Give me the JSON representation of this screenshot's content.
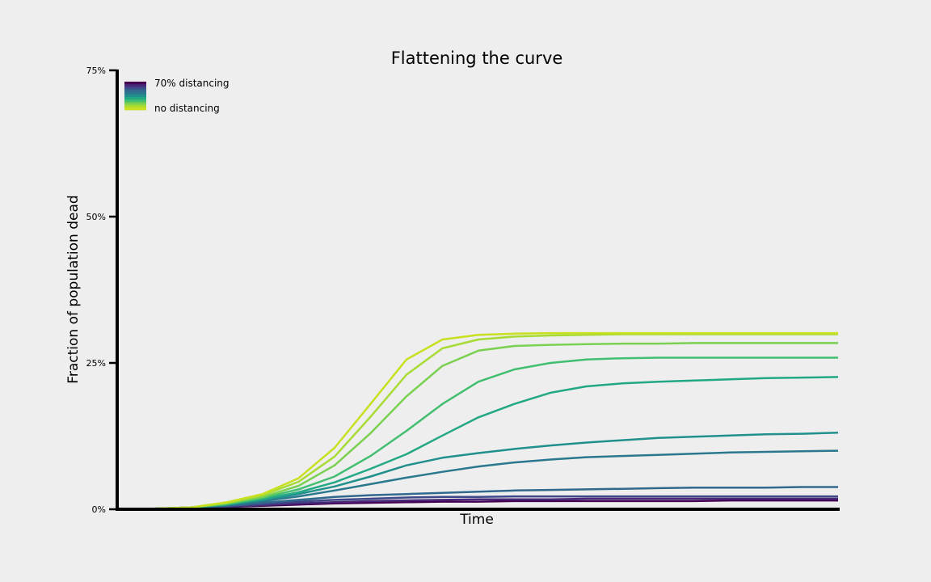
{
  "chart_data": {
    "type": "line",
    "title": "Flattening the curve",
    "xlabel": "Time",
    "ylabel": "Fraction of population dead",
    "ylim": [
      0,
      75
    ],
    "yticks": [
      {
        "value": 0,
        "label": "0%"
      },
      {
        "value": 25,
        "label": "25%"
      },
      {
        "value": 50,
        "label": "50%"
      },
      {
        "value": 75,
        "label": "75%"
      }
    ],
    "xticks_shown": false,
    "grid": false,
    "legend": {
      "placement": "top-left",
      "top_label": "70% distancing",
      "bottom_label": "no distancing",
      "colormap": "viridis"
    },
    "x": [
      0,
      5,
      10,
      15,
      20,
      25,
      30,
      35,
      40,
      45,
      50,
      55,
      60,
      65,
      70,
      75,
      80,
      85,
      90,
      95,
      100
    ],
    "series": [
      {
        "distancing": 0.7,
        "color": "#440154",
        "values": [
          0,
          0.1,
          0.2,
          0.4,
          0.6,
          0.8,
          1.0,
          1.1,
          1.2,
          1.3,
          1.3,
          1.4,
          1.4,
          1.4,
          1.4,
          1.4,
          1.4,
          1.5,
          1.5,
          1.5,
          1.5
        ]
      },
      {
        "distancing": 0.63,
        "color": "#482878",
        "values": [
          0,
          0.1,
          0.2,
          0.4,
          0.7,
          1.0,
          1.2,
          1.4,
          1.5,
          1.6,
          1.7,
          1.7,
          1.7,
          1.8,
          1.8,
          1.8,
          1.8,
          1.8,
          1.8,
          1.8,
          1.8
        ]
      },
      {
        "distancing": 0.56,
        "color": "#3e4989",
        "values": [
          0,
          0.1,
          0.2,
          0.5,
          0.9,
          1.3,
          1.6,
          1.8,
          2.0,
          2.1,
          2.1,
          2.2,
          2.2,
          2.2,
          2.2,
          2.2,
          2.2,
          2.2,
          2.2,
          2.2,
          2.2
        ]
      },
      {
        "distancing": 0.49,
        "color": "#31688e",
        "values": [
          0,
          0.1,
          0.3,
          0.6,
          1.1,
          1.6,
          2.1,
          2.4,
          2.6,
          2.8,
          3.0,
          3.2,
          3.3,
          3.4,
          3.5,
          3.6,
          3.7,
          3.7,
          3.7,
          3.8,
          3.8
        ]
      },
      {
        "distancing": 0.42,
        "color": "#2a788e",
        "values": [
          0,
          0.1,
          0.3,
          0.7,
          1.4,
          2.2,
          3.2,
          4.3,
          5.4,
          6.4,
          7.3,
          8.0,
          8.5,
          8.9,
          9.1,
          9.3,
          9.5,
          9.7,
          9.8,
          9.9,
          10.0
        ]
      },
      {
        "distancing": 0.35,
        "color": "#21908d",
        "values": [
          0,
          0.1,
          0.3,
          0.8,
          1.6,
          2.6,
          3.9,
          5.6,
          7.5,
          8.8,
          9.6,
          10.3,
          10.9,
          11.4,
          11.8,
          12.2,
          12.4,
          12.6,
          12.8,
          12.9,
          13.1
        ]
      },
      {
        "distancing": 0.28,
        "color": "#22a884",
        "values": [
          0,
          0.1,
          0.3,
          0.8,
          1.7,
          2.9,
          4.6,
          6.9,
          9.4,
          12.6,
          15.7,
          18.0,
          19.9,
          21.0,
          21.5,
          21.8,
          22.0,
          22.2,
          22.4,
          22.5,
          22.6
        ]
      },
      {
        "distancing": 0.21,
        "color": "#42be71",
        "values": [
          0,
          0.1,
          0.3,
          0.9,
          1.9,
          3.4,
          5.6,
          9.1,
          13.4,
          18.0,
          21.8,
          23.9,
          25.0,
          25.6,
          25.8,
          25.9,
          25.9,
          25.9,
          25.9,
          25.9,
          25.9
        ]
      },
      {
        "distancing": 0.14,
        "color": "#7ad151",
        "values": [
          0,
          0.1,
          0.3,
          1.0,
          2.1,
          4.0,
          7.5,
          13.0,
          19.3,
          24.5,
          27.1,
          27.9,
          28.1,
          28.2,
          28.3,
          28.3,
          28.4,
          28.4,
          28.4,
          28.4,
          28.4
        ]
      },
      {
        "distancing": 0.07,
        "color": "#a8db34",
        "values": [
          0,
          0.1,
          0.3,
          1.1,
          2.4,
          4.7,
          9.0,
          15.8,
          23.0,
          27.5,
          29.0,
          29.5,
          29.7,
          29.8,
          29.9,
          29.9,
          29.9,
          29.9,
          29.9,
          29.9,
          29.9
        ]
      },
      {
        "distancing": 0.0,
        "color": "#c8e020",
        "values": [
          0,
          0.1,
          0.3,
          1.2,
          2.6,
          5.3,
          10.5,
          18.0,
          25.6,
          29.0,
          29.8,
          30.0,
          30.1,
          30.1,
          30.1,
          30.1,
          30.1,
          30.1,
          30.1,
          30.1,
          30.1
        ]
      }
    ]
  }
}
